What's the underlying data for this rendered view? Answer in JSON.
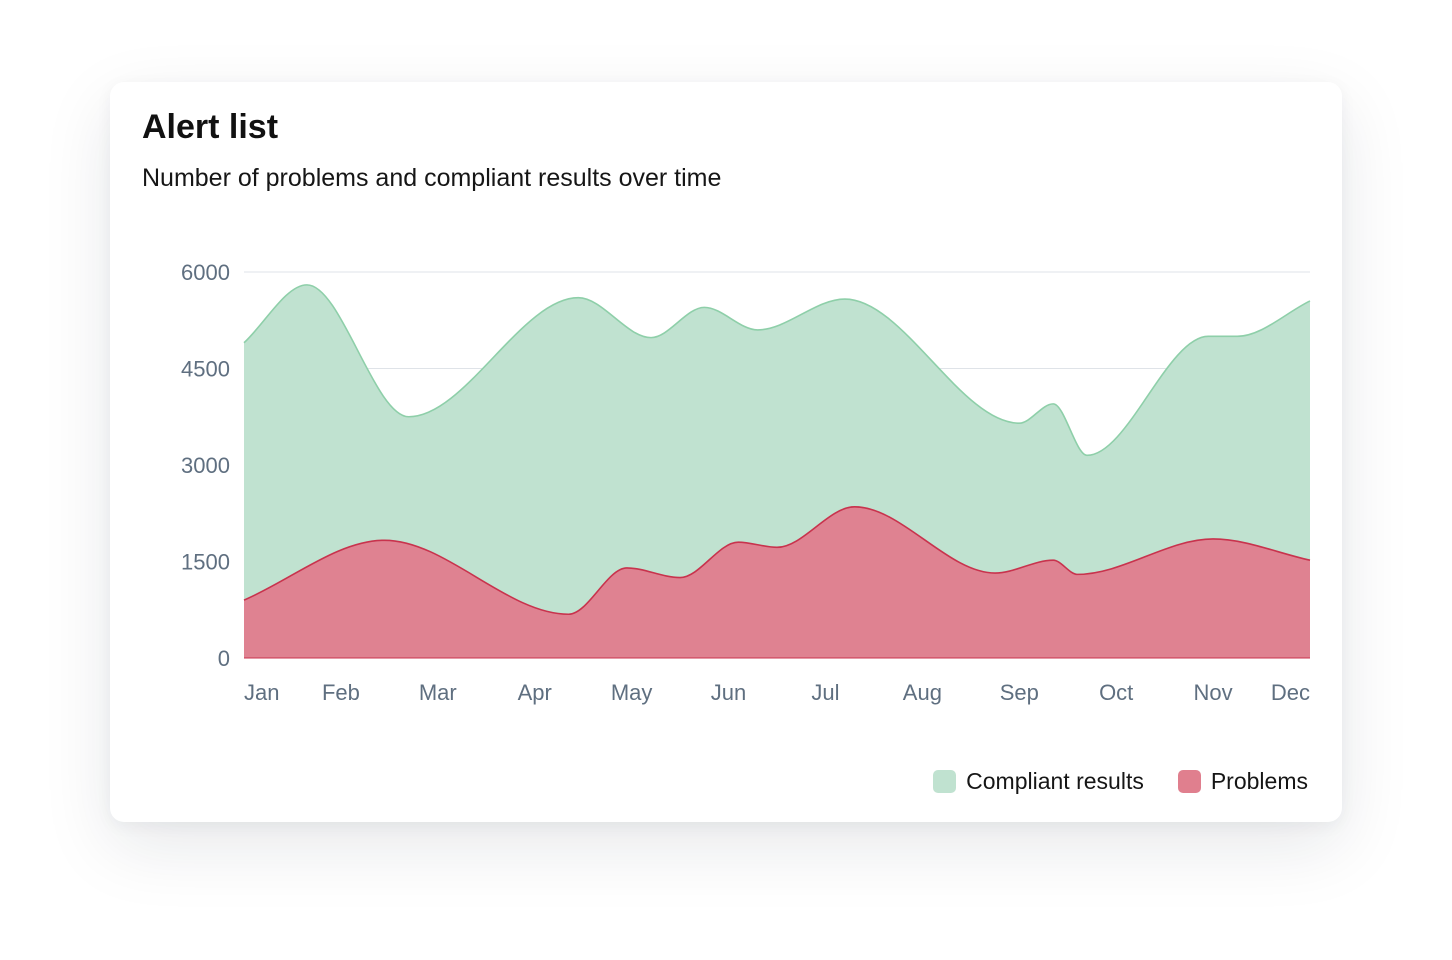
{
  "card": {
    "title": "Alert list",
    "subtitle": "Number of problems and compliant results over time"
  },
  "chart_data": {
    "type": "area",
    "title": "Alert list",
    "subtitle": "Number of problems and compliant results over time",
    "x_labels": [
      "Jan",
      "Feb",
      "Mar",
      "Apr",
      "May",
      "Jun",
      "Jul",
      "Aug",
      "Sep",
      "Oct",
      "Nov",
      "Dec"
    ],
    "y_ticks": [
      0,
      1500,
      3000,
      4500,
      6000
    ],
    "ylim": [
      0,
      6000
    ],
    "grid": true,
    "legend_position": "bottom-right",
    "series": [
      {
        "name": "Compliant results",
        "color": "#c0e2d0",
        "line_color": "#8ecfa9",
        "points": [
          {
            "x": 0.0,
            "y": 4900
          },
          {
            "x": 0.65,
            "y": 5800
          },
          {
            "x": 1.7,
            "y": 3750
          },
          {
            "x": 3.45,
            "y": 5600
          },
          {
            "x": 4.2,
            "y": 4980
          },
          {
            "x": 4.75,
            "y": 5450
          },
          {
            "x": 5.3,
            "y": 5100
          },
          {
            "x": 6.2,
            "y": 5580
          },
          {
            "x": 8.0,
            "y": 3650
          },
          {
            "x": 8.35,
            "y": 3950
          },
          {
            "x": 8.7,
            "y": 3150
          },
          {
            "x": 9.95,
            "y": 5000
          },
          {
            "x": 10.25,
            "y": 5000
          },
          {
            "x": 11.0,
            "y": 5550
          }
        ]
      },
      {
        "name": "Problems",
        "color": "#e07f8e",
        "line_color": "#c8334d",
        "points": [
          {
            "x": 0.0,
            "y": 900
          },
          {
            "x": 1.45,
            "y": 1830
          },
          {
            "x": 3.35,
            "y": 680
          },
          {
            "x": 3.95,
            "y": 1400
          },
          {
            "x": 4.5,
            "y": 1250
          },
          {
            "x": 5.1,
            "y": 1800
          },
          {
            "x": 5.5,
            "y": 1720
          },
          {
            "x": 6.3,
            "y": 2350
          },
          {
            "x": 7.75,
            "y": 1320
          },
          {
            "x": 8.35,
            "y": 1520
          },
          {
            "x": 8.6,
            "y": 1300
          },
          {
            "x": 10.0,
            "y": 1850
          },
          {
            "x": 11.0,
            "y": 1520
          }
        ]
      }
    ]
  }
}
